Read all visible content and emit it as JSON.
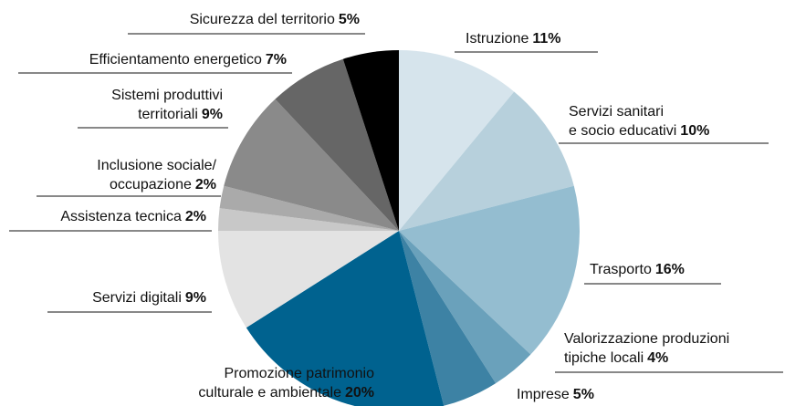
{
  "chart_data": {
    "type": "pie",
    "categories": [
      "Istruzione",
      "Servizi sanitari\ne socio educativi",
      "Trasporto",
      "Valorizzazione produzioni\ntipiche locali",
      "Imprese",
      "Promozione patrimonio\nculturale e ambientale",
      "Servizi digitali",
      "Assistenza tecnica",
      "Inclusione sociale/\noccupazione",
      "Sistemi produttivi\nterritoriali",
      "Efficientamento energetico",
      "Sicurezza del territorio"
    ],
    "values": [
      11,
      10,
      16,
      4,
      5,
      20,
      9,
      2,
      2,
      9,
      7,
      5
    ],
    "value_labels": [
      "11%",
      "10%",
      "16%",
      "4%",
      "5%",
      "20%",
      "9%",
      "2%",
      "2%",
      "9%",
      "7%",
      "5%"
    ],
    "colors": [
      "#d6e4ec",
      "#b7d0dc",
      "#94bdd0",
      "#6aa1bb",
      "#3d82a4",
      "#00628f",
      "#e3e3e3",
      "#c8c8c8",
      "#aaaaaa",
      "#8a8a8a",
      "#666666",
      "#000000"
    ]
  }
}
